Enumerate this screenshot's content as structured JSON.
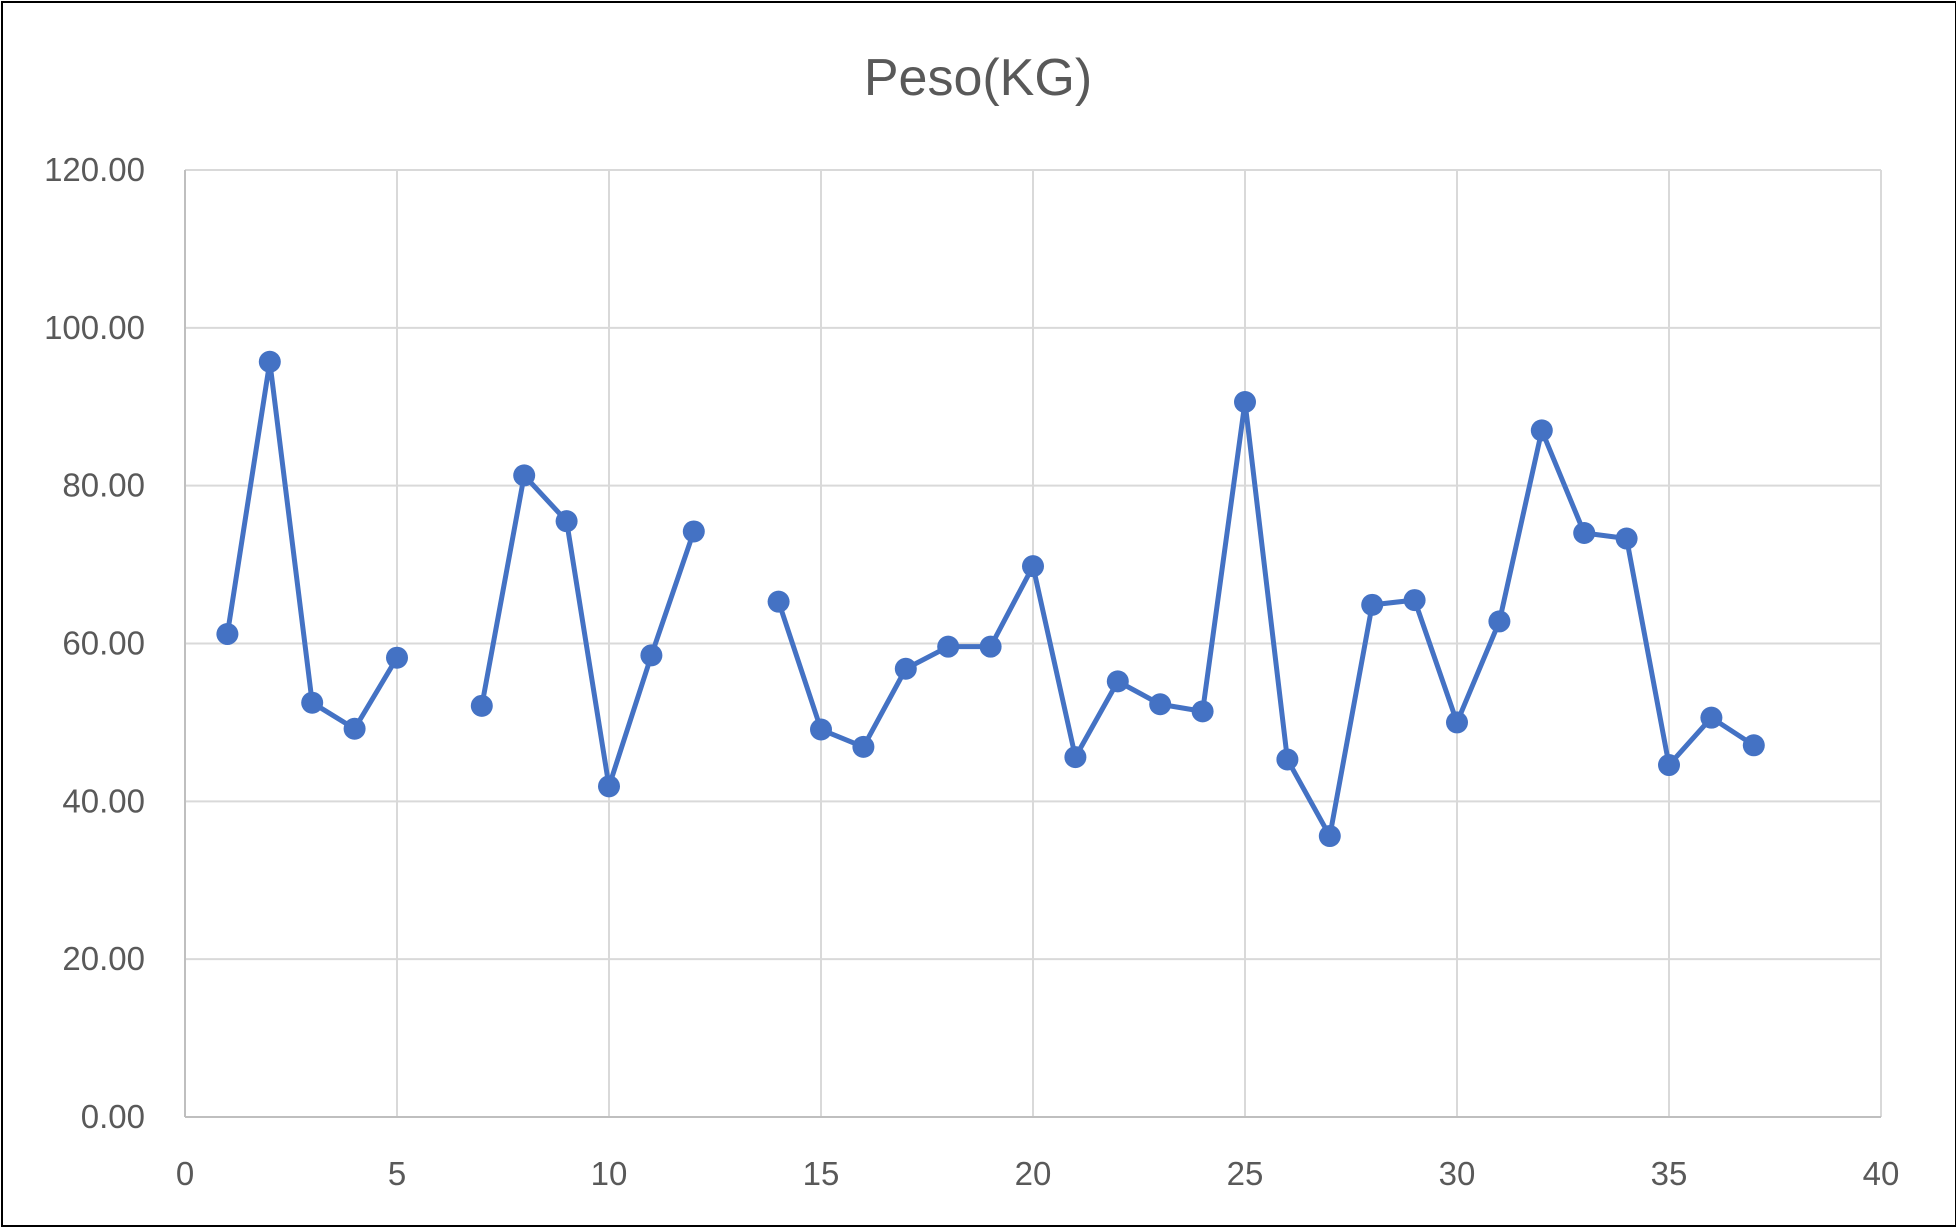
{
  "chart_data": {
    "type": "scatter",
    "title": "Peso(KG)",
    "xlabel": "",
    "ylabel": "",
    "xlim": [
      0,
      40
    ],
    "ylim": [
      0,
      120
    ],
    "x_ticks": [
      0,
      5,
      10,
      15,
      20,
      25,
      30,
      35,
      40
    ],
    "y_ticks": [
      0,
      20,
      40,
      60,
      80,
      100,
      120
    ],
    "x_tick_labels": [
      "0",
      "5",
      "10",
      "15",
      "20",
      "25",
      "30",
      "35",
      "40"
    ],
    "y_tick_labels": [
      "0.00",
      "20.00",
      "40.00",
      "60.00",
      "80.00",
      "100.00",
      "120.00"
    ],
    "grid": true,
    "legend": "none",
    "lines_connect_points": true,
    "markers": true,
    "series": [
      {
        "color": "#4472C4",
        "points": [
          [
            1,
            61.2
          ],
          [
            2,
            95.7
          ],
          [
            3,
            52.5
          ],
          [
            4,
            49.2
          ],
          [
            5,
            58.2
          ],
          [
            6,
            null
          ],
          [
            7,
            52.1
          ],
          [
            8,
            81.3
          ],
          [
            9,
            75.5
          ],
          [
            10,
            41.9
          ],
          [
            11,
            58.5
          ],
          [
            12,
            74.2
          ],
          [
            13,
            null
          ],
          [
            14,
            65.3
          ],
          [
            15,
            49.1
          ],
          [
            16,
            46.9
          ],
          [
            17,
            56.8
          ],
          [
            18,
            59.6
          ],
          [
            19,
            59.6
          ],
          [
            20,
            69.8
          ],
          [
            21,
            45.6
          ],
          [
            22,
            55.2
          ],
          [
            23,
            52.3
          ],
          [
            24,
            51.4
          ],
          [
            25,
            90.6
          ],
          [
            26,
            45.3
          ],
          [
            27,
            35.6
          ],
          [
            28,
            64.9
          ],
          [
            29,
            65.5
          ],
          [
            30,
            50.0
          ],
          [
            31,
            62.8
          ],
          [
            32,
            87.0
          ],
          [
            33,
            74.0
          ],
          [
            34,
            73.3
          ],
          [
            35,
            44.6
          ],
          [
            36,
            50.6
          ],
          [
            37,
            47.1
          ]
        ]
      }
    ]
  }
}
